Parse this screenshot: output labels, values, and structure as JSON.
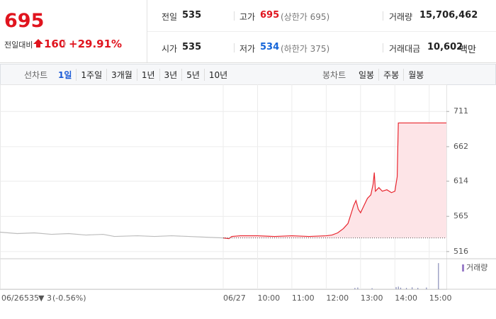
{
  "header": {
    "price": "695",
    "change_label": "전일대비",
    "change": "160",
    "change_pct": "+29.91%",
    "stats": [
      [
        {
          "label": "전일",
          "value": "535"
        },
        {
          "label": "고가",
          "value": "695",
          "note": "(상한가 695)"
        },
        {
          "label": "거래량",
          "value": "15,706,462"
        }
      ],
      [
        {
          "label": "시가",
          "value": "535"
        },
        {
          "label": "저가",
          "value": "534",
          "note": "(하한가 375)"
        },
        {
          "label": "거래대금",
          "value": "10,602",
          "unit": "백만"
        }
      ]
    ]
  },
  "toolbar": {
    "line_label": "선차트",
    "periods": [
      "1일",
      "1주일",
      "3개월",
      "1년",
      "3년",
      "5년",
      "10년"
    ],
    "candle_label": "봉차트",
    "candle_periods": [
      "일봉",
      "주봉",
      "월봉"
    ]
  },
  "chart_data": {
    "type": "line",
    "xlim": [
      0,
      780
    ],
    "xticks": [
      {
        "value": 0,
        "label": "06/26"
      },
      {
        "value": 390,
        "label": "06/27"
      },
      {
        "value": 450,
        "label": "10:00"
      },
      {
        "value": 510,
        "label": "11:00"
      },
      {
        "value": 570,
        "label": "12:00"
      },
      {
        "value": 630,
        "label": "13:00"
      },
      {
        "value": 690,
        "label": "14:00"
      },
      {
        "value": 750,
        "label": "15:00"
      }
    ],
    "ylim": [
      506,
      728
    ],
    "yticks": [
      711,
      662,
      614,
      565,
      516
    ],
    "prev_close": 535,
    "prev_change": "▼ 3",
    "prev_change_pct": "(-0.56%)",
    "fill": "#fde4e7",
    "series": [
      {
        "color": "#bdbdbd",
        "x": [
          0,
          30,
          60,
          90,
          120,
          150,
          180,
          200,
          240,
          270,
          300,
          330,
          360,
          390
        ],
        "values": [
          543,
          541,
          542,
          540,
          541,
          539,
          540,
          537,
          538,
          537,
          538,
          537,
          536,
          535
        ]
      },
      {
        "color": "#e8262f",
        "x": [
          390,
          400,
          405,
          420,
          450,
          480,
          510,
          540,
          570,
          580,
          590,
          600,
          608,
          612,
          618,
          622,
          626,
          630,
          636,
          642,
          648,
          652,
          654,
          656,
          662,
          668,
          676,
          684,
          690,
          694,
          696,
          720,
          780
        ],
        "values": [
          535,
          534,
          537,
          538,
          538,
          537,
          538,
          537,
          538,
          539,
          542,
          548,
          555,
          565,
          580,
          587,
          575,
          570,
          580,
          590,
          595,
          610,
          626,
          600,
          605,
          600,
          602,
          598,
          600,
          620,
          695,
          695,
          695
        ]
      }
    ],
    "volume": {
      "name": "거래량",
      "color": "#8a8fb8",
      "ylim": [
        0,
        3500000
      ],
      "x": [
        620,
        625,
        650,
        692,
        696,
        700,
        710,
        720,
        730,
        745,
        766
      ],
      "values": [
        150000,
        200000,
        120000,
        250000,
        300000,
        180000,
        150000,
        220000,
        160000,
        200000,
        3000000
      ]
    }
  }
}
